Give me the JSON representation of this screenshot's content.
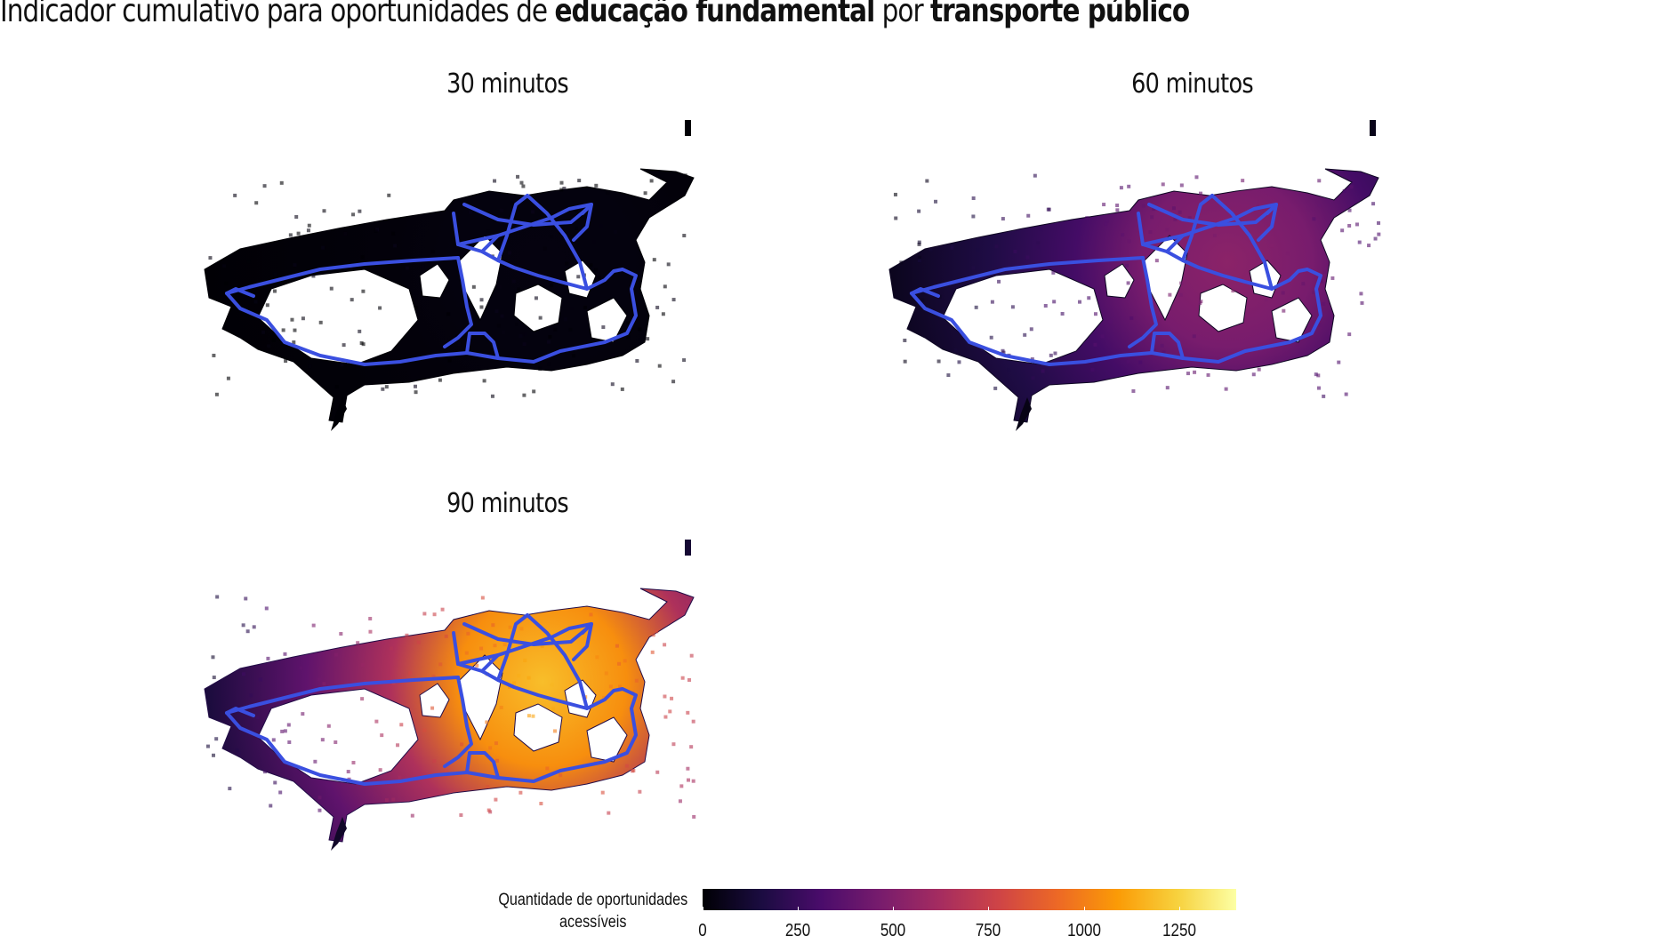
{
  "title": {
    "parts": [
      {
        "text": "Indicador cumulativo para oportunidades de ",
        "bold": false
      },
      {
        "text": "educação fundamental",
        "bold": true
      },
      {
        "text": " por ",
        "bold": false
      },
      {
        "text": "transporte público",
        "bold": true
      }
    ]
  },
  "panels": [
    {
      "label": "30 minutos",
      "intensity": 0.02
    },
    {
      "label": "60 minutos",
      "intensity": 0.38
    },
    {
      "label": "90 minutos",
      "intensity": 0.85
    }
  ],
  "legend": {
    "title_line1": "Quantidade de oportunidades",
    "title_line2": "acessíveis",
    "ticks": [
      "0",
      "250",
      "500",
      "750",
      "1000",
      "1250"
    ],
    "tick_values": [
      0,
      250,
      500,
      750,
      1000,
      1250
    ],
    "max_value": 1400,
    "palette": [
      "#000004",
      "#1b0c41",
      "#4a0c6b",
      "#781c6d",
      "#a52c60",
      "#cf4446",
      "#ed6925",
      "#fb9b06",
      "#f7d13d",
      "#fcffa4"
    ]
  },
  "colors": {
    "transit_line": "#3a4fe0",
    "background": "#ffffff"
  }
}
